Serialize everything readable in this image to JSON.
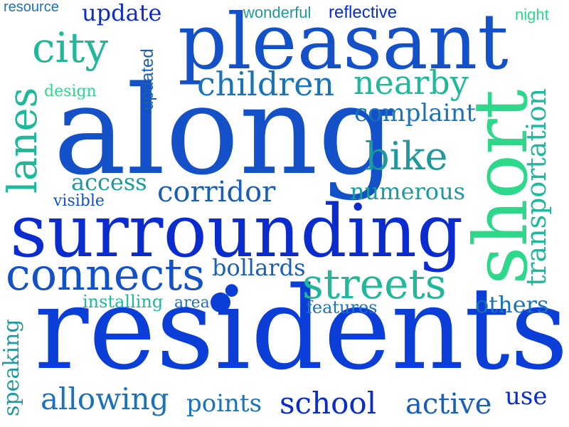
{
  "colors": {
    "background": "#ffffff",
    "dark_blue": "#0a2ccf",
    "royal_blue": "#1450c8",
    "teal": "#1e9a9e",
    "sea_green": "#1fb89a",
    "light_green": "#2ed88a"
  },
  "words": {
    "along": "along",
    "residents": "residents",
    "surrounding": "surrounding",
    "pleasant": "pleasant",
    "short": "short",
    "connects": "connects",
    "streets": "streets",
    "city": "city",
    "bike": "bike",
    "lanes": "lanes",
    "children": "children",
    "nearby": "nearby",
    "transportation": "transportation",
    "corridor": "corridor",
    "school": "school",
    "allowing": "allowing",
    "active": "active",
    "complaint": "complaint",
    "numerous": "numerous",
    "access": "access",
    "update": "update",
    "bollards": "bollards",
    "points": "points",
    "use": "use",
    "others": "others",
    "features": "features",
    "speaking": "speaking",
    "installing": "installing",
    "area": "area",
    "updated": "updated",
    "design": "design",
    "visible": "visible",
    "wonderful": "wonderful",
    "reflective": "reflective",
    "resource": "resource",
    "night": "night"
  }
}
